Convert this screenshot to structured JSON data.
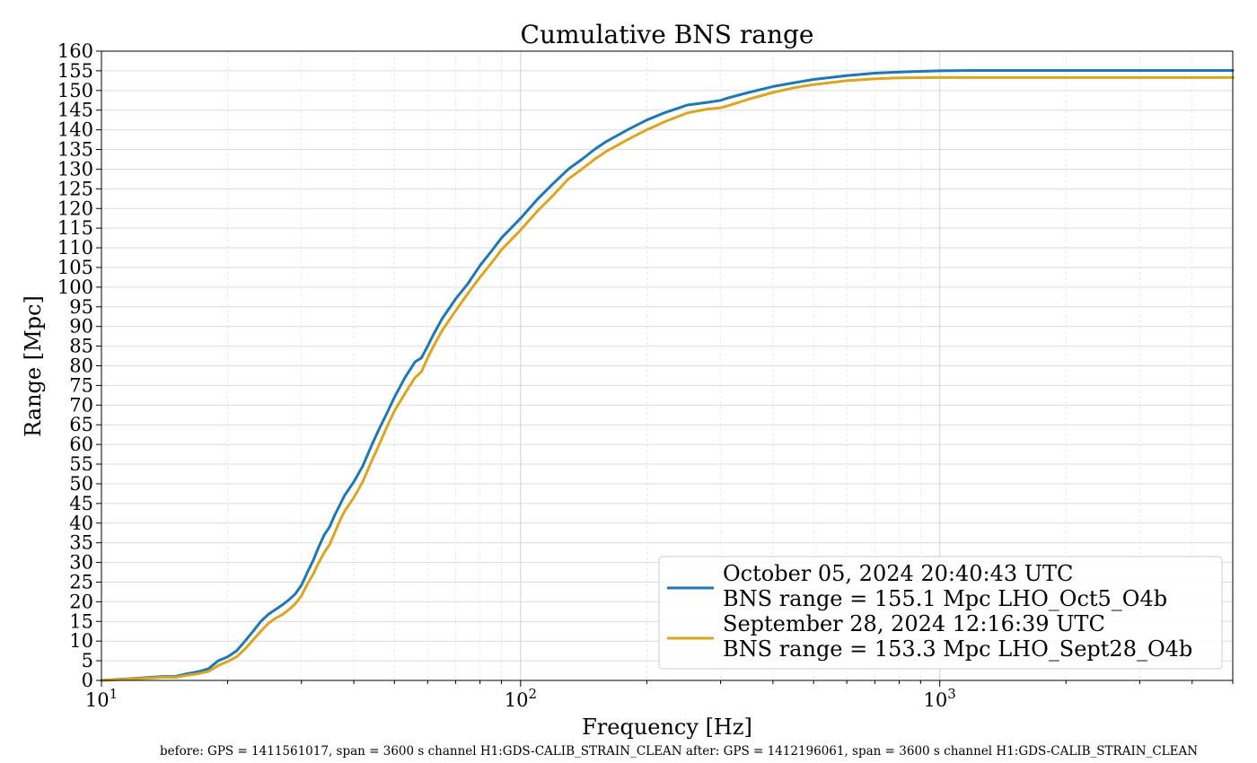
{
  "chart_data": {
    "type": "line",
    "title": "Cumulative BNS range",
    "xlabel": "Frequency [Hz]",
    "ylabel": "Range [Mpc]",
    "xscale": "log",
    "xlim": [
      10,
      5000
    ],
    "ylim": [
      0,
      160
    ],
    "yticks": [
      0,
      5,
      10,
      15,
      20,
      25,
      30,
      35,
      40,
      45,
      50,
      55,
      60,
      65,
      70,
      75,
      80,
      85,
      90,
      95,
      100,
      105,
      110,
      115,
      120,
      125,
      130,
      135,
      140,
      145,
      150,
      155,
      160
    ],
    "xticks": [
      {
        "value": 10,
        "base": "10",
        "exp": "1"
      },
      {
        "value": 100,
        "base": "10",
        "exp": "2"
      },
      {
        "value": 1000,
        "base": "10",
        "exp": "3"
      }
    ],
    "grid": true,
    "legend_position": "lower-right",
    "series": [
      {
        "name_line1": "October 05, 2024 20:40:43 UTC",
        "name_line2": "BNS range = 155.1 Mpc LHO_Oct5_O4b",
        "color": "#1f77b4",
        "x": [
          10,
          12,
          14,
          15,
          16,
          17,
          18,
          19,
          20,
          21,
          22,
          23,
          24,
          25,
          26,
          27,
          28,
          29,
          30,
          31,
          32,
          33,
          34,
          35,
          36,
          37,
          38,
          40,
          42,
          44,
          46,
          48,
          50,
          53,
          56,
          58,
          60,
          62,
          65,
          70,
          75,
          80,
          85,
          90,
          100,
          110,
          120,
          130,
          140,
          150,
          160,
          180,
          200,
          220,
          250,
          280,
          300,
          310,
          350,
          400,
          450,
          500,
          600,
          700,
          800,
          1000,
          1200,
          1500,
          2000,
          3000,
          4000,
          5000
        ],
        "y": [
          0,
          0.5,
          1,
          1,
          1.7,
          2.2,
          3,
          5,
          6,
          7.5,
          10,
          12.5,
          15,
          16.8,
          18,
          19.2,
          20.5,
          22,
          24.2,
          27.5,
          30.5,
          34,
          37,
          39,
          42,
          44.5,
          47,
          50.5,
          54.5,
          59.5,
          64,
          68,
          72,
          77,
          81,
          82,
          85,
          88,
          92,
          97,
          101,
          105.5,
          109,
          112.5,
          117.5,
          122.5,
          126.5,
          130,
          132.5,
          135,
          137,
          140,
          142.5,
          144.3,
          146.3,
          147,
          147.5,
          148,
          149.5,
          151,
          152,
          152.8,
          153.8,
          154.4,
          154.7,
          155,
          155.1,
          155.1,
          155.1,
          155.1,
          155.1,
          155.1
        ]
      },
      {
        "name_line1": "September 28, 2024 12:16:39 UTC",
        "name_line2": "BNS range = 153.3 Mpc LHO_Sept28_O4b",
        "color": "#daa520",
        "x": [
          10,
          12,
          14,
          15,
          16,
          17,
          18,
          19,
          20,
          21,
          22,
          23,
          24,
          25,
          26,
          27,
          28,
          29,
          30,
          31,
          32,
          33,
          34,
          35,
          36,
          37,
          38,
          40,
          42,
          44,
          46,
          48,
          50,
          53,
          56,
          58,
          60,
          62,
          65,
          70,
          75,
          80,
          85,
          90,
          100,
          110,
          120,
          130,
          140,
          150,
          160,
          180,
          200,
          220,
          250,
          280,
          300,
          310,
          350,
          400,
          450,
          500,
          600,
          700,
          800,
          1000,
          1200,
          1500,
          2000,
          3000,
          4000,
          5000
        ],
        "y": [
          0,
          0.4,
          0.8,
          0.8,
          1.3,
          1.7,
          2.3,
          3.8,
          4.8,
          6,
          8,
          10.3,
          12.5,
          14.5,
          15.8,
          16.7,
          18,
          19.5,
          21.5,
          24.5,
          27,
          30,
          32.5,
          34.5,
          37.5,
          40.5,
          43,
          46.5,
          50.5,
          55.5,
          60,
          64.5,
          68.5,
          73,
          77,
          78.5,
          82,
          85,
          89,
          94,
          98.5,
          102.5,
          106,
          109.5,
          114.5,
          119.5,
          123.5,
          127.5,
          130,
          132.5,
          134.5,
          137.5,
          140,
          142,
          144.3,
          145.3,
          145.6,
          146,
          147.8,
          149.5,
          150.7,
          151.5,
          152.5,
          153,
          153.2,
          153.3,
          153.3,
          153.3,
          153.3,
          153.3,
          153.3,
          153.3
        ]
      }
    ]
  },
  "footer_text": "before: GPS = 1411561017, span = 3600 s channel H1:GDS-CALIB_STRAIN_CLEAN after: GPS = 1412196061, span = 3600 s channel H1:GDS-CALIB_STRAIN_CLEAN"
}
